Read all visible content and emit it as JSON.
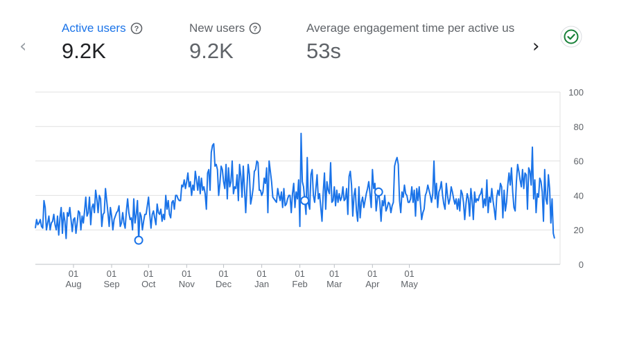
{
  "nav": {
    "prev_icon": "chevron-left-icon",
    "next_icon": "chevron-right-icon"
  },
  "metrics": [
    {
      "label": "Active users",
      "value": "9.2K",
      "active": true
    },
    {
      "label": "New users",
      "value": "9.2K",
      "active": false
    },
    {
      "label": "Average engagement time per active us",
      "value": "53s",
      "active": false
    }
  ],
  "status": {
    "icon": "check-circle-icon",
    "color": "#188038"
  },
  "colors": {
    "accent": "#1a73e8",
    "grid": "#e0e0e0",
    "text_secondary": "#5f6368"
  },
  "chart_data": {
    "type": "line",
    "series": [
      {
        "values": [
          21,
          26,
          23,
          24,
          26,
          22,
          21,
          37,
          33,
          20,
          24,
          28,
          20,
          24,
          25,
          29,
          23,
          20,
          28,
          17,
          27,
          33,
          18,
          30,
          25,
          15,
          30,
          28,
          33,
          26,
          19,
          26,
          27,
          18,
          24,
          31,
          30,
          20,
          28,
          24,
          31,
          39,
          28,
          30,
          39,
          23,
          33,
          35,
          30,
          43,
          38,
          30,
          40,
          38,
          22,
          29,
          30,
          44,
          37,
          30,
          22,
          33,
          28,
          20,
          26,
          28,
          30,
          31,
          34,
          22,
          24,
          30,
          24,
          21,
          31,
          38,
          30,
          26,
          27,
          20,
          38,
          24,
          29,
          37,
          14,
          30,
          28,
          20,
          25,
          29,
          29,
          34,
          39,
          29,
          21,
          29,
          31,
          27,
          23,
          35,
          30,
          29,
          32,
          25,
          29,
          26,
          40,
          32,
          37,
          29,
          27,
          36,
          37,
          32,
          40,
          40,
          38,
          37,
          37,
          46,
          45,
          49,
          44,
          48,
          53,
          45,
          48,
          40,
          46,
          43,
          54,
          49,
          43,
          51,
          41,
          50,
          43,
          45,
          41,
          32,
          53,
          55,
          43,
          65,
          69,
          70,
          57,
          58,
          55,
          40,
          47,
          57,
          55,
          48,
          44,
          58,
          38,
          56,
          45,
          48,
          60,
          41,
          45,
          44,
          52,
          37,
          58,
          51,
          39,
          57,
          44,
          30,
          45,
          58,
          52,
          35,
          39,
          44,
          54,
          55,
          60,
          59,
          43,
          43,
          40,
          42,
          50,
          47,
          56,
          30,
          60,
          54,
          48,
          39,
          38,
          37,
          36,
          44,
          40,
          37,
          42,
          33,
          44,
          34,
          35,
          38,
          40,
          40,
          30,
          41,
          47,
          33,
          42,
          38,
          49,
          22,
          76,
          48,
          45,
          37,
          29,
          62,
          35,
          32,
          52,
          55,
          40,
          36,
          44,
          52,
          38,
          41,
          33,
          25,
          42,
          53,
          32,
          48,
          43,
          41,
          59,
          36,
          37,
          45,
          34,
          43,
          36,
          41,
          37,
          39,
          45,
          37,
          38,
          44,
          29,
          51,
          54,
          46,
          28,
          40,
          44,
          31,
          25,
          45,
          27,
          36,
          39,
          33,
          37,
          41,
          44,
          48,
          41,
          33,
          55,
          44,
          47,
          31,
          38,
          42,
          36,
          25,
          37,
          34,
          40,
          31,
          33,
          36,
          35,
          30,
          34,
          36,
          57,
          60,
          62,
          58,
          37,
          30,
          42,
          39,
          46,
          41,
          40,
          36,
          36,
          38,
          45,
          36,
          43,
          28,
          44,
          37,
          45,
          35,
          26,
          30,
          32,
          40,
          42,
          46,
          43,
          40,
          36,
          41,
          60,
          38,
          47,
          33,
          42,
          44,
          48,
          40,
          35,
          32,
          47,
          40,
          35,
          38,
          45,
          42,
          38,
          35,
          38,
          32,
          38,
          31,
          43,
          41,
          36,
          26,
          35,
          41,
          38,
          28,
          44,
          37,
          26,
          42,
          36,
          38,
          37,
          40,
          41,
          44,
          33,
          38,
          34,
          49,
          30,
          39,
          36,
          44,
          37,
          32,
          26,
          39,
          43,
          40,
          47,
          45,
          27,
          43,
          31,
          36,
          46,
          53,
          46,
          56,
          42,
          33,
          31,
          48,
          58,
          54,
          49,
          45,
          55,
          44,
          53,
          52,
          32,
          56,
          54,
          46,
          68,
          38,
          49,
          30,
          41,
          39,
          50,
          48,
          42,
          25,
          55,
          38,
          35,
          52,
          44,
          24,
          38,
          18,
          15
        ],
        "markers": [
          84,
          219,
          279
        ]
      }
    ],
    "x_ticks": [
      {
        "index": 31,
        "day": "01",
        "month": "Aug"
      },
      {
        "index": 62,
        "day": "01",
        "month": "Sep"
      },
      {
        "index": 92,
        "day": "01",
        "month": "Oct"
      },
      {
        "index": 123,
        "day": "01",
        "month": "Nov"
      },
      {
        "index": 153,
        "day": "01",
        "month": "Dec"
      },
      {
        "index": 184,
        "day": "01",
        "month": "Jan"
      },
      {
        "index": 215,
        "day": "01",
        "month": "Feb"
      },
      {
        "index": 243,
        "day": "01",
        "month": "Mar"
      },
      {
        "index": 274,
        "day": "01",
        "month": "Apr"
      },
      {
        "index": 304,
        "day": "01",
        "month": "May"
      }
    ],
    "y_ticks": [
      0,
      20,
      40,
      60,
      80,
      100
    ],
    "ylim": [
      0,
      100
    ],
    "grid": true,
    "line_color": "#1a73e8"
  }
}
